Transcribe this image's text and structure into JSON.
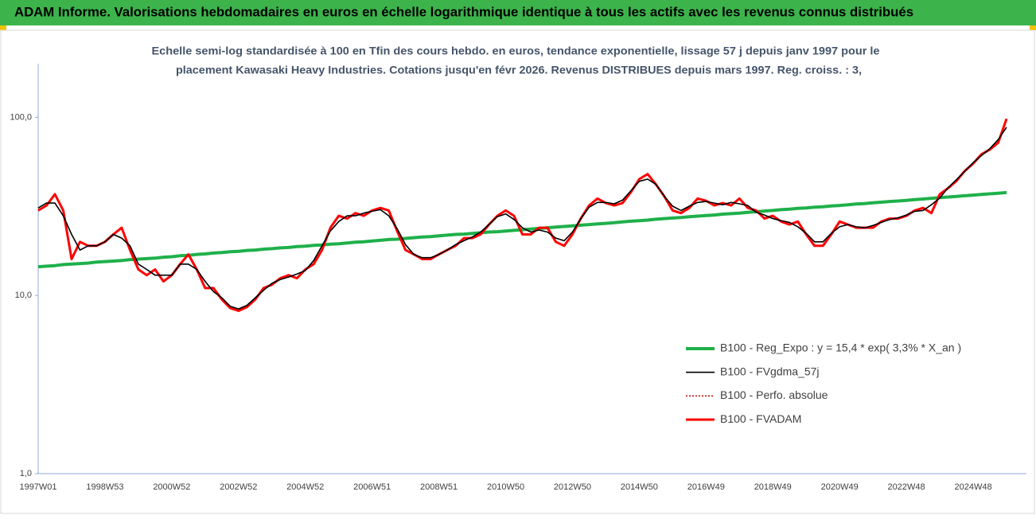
{
  "chart_data": {
    "type": "line",
    "title": "ADAM Informe. Valorisations hebdomadaires en euros en échelle logarithmique identique à tous les actifs avec les revenus connus distribués",
    "subtitle": [
      "Echelle semi-log standardisée à 100 en Tfin des cours hebdo. en euros, tendance exponentielle, lissage 57 j depuis janv 1997 pour le",
      "placement Kawasaki Heavy Industries. Cotations jusqu'en févr 2026. Revenus DISTRIBUES depuis mars 1997. Reg. croiss. : 3,"
    ],
    "log_scale": true,
    "ylim": [
      1,
      200
    ],
    "yticks": [
      {
        "value": 1,
        "label": "1,0"
      },
      {
        "value": 10,
        "label": "10,0"
      },
      {
        "value": 100,
        "label": "100,0"
      }
    ],
    "legend": "lower right",
    "categories": [
      "1997W01",
      null,
      null,
      null,
      null,
      null,
      null,
      null,
      "1998W53",
      null,
      null,
      null,
      null,
      null,
      null,
      null,
      "2000W52",
      null,
      null,
      null,
      null,
      null,
      null,
      null,
      "2002W52",
      null,
      null,
      null,
      null,
      null,
      null,
      null,
      "2004W52",
      null,
      null,
      null,
      null,
      null,
      null,
      null,
      "2006W51",
      null,
      null,
      null,
      null,
      null,
      null,
      null,
      "2008W51",
      null,
      null,
      null,
      null,
      null,
      null,
      null,
      "2010W50",
      null,
      null,
      null,
      null,
      null,
      null,
      null,
      "2012W50",
      null,
      null,
      null,
      null,
      null,
      null,
      null,
      "2014W50",
      null,
      null,
      null,
      null,
      null,
      null,
      null,
      "2016W49",
      null,
      null,
      null,
      null,
      null,
      null,
      null,
      "2018W49",
      null,
      null,
      null,
      null,
      null,
      null,
      null,
      "2020W49",
      null,
      null,
      null,
      null,
      null,
      null,
      null,
      "2022W48",
      null,
      null,
      null,
      null,
      null,
      null,
      null,
      "2024W48",
      null,
      null,
      null,
      null
    ],
    "series": [
      {
        "name": "B100 - Reg_Expo : y = 15,4 * exp( 3,3% *  X_an )",
        "color": "#1fb04a",
        "width": 4,
        "style": "solid",
        "values": [
          14.5,
          14.6,
          14.7,
          14.9,
          15.0,
          15.1,
          15.2,
          15.4,
          15.5,
          15.6,
          15.7,
          15.9,
          16.0,
          16.1,
          16.2,
          16.4,
          16.5,
          16.7,
          16.8,
          17.0,
          17.1,
          17.3,
          17.4,
          17.6,
          17.7,
          17.9,
          18.0,
          18.2,
          18.3,
          18.5,
          18.6,
          18.8,
          18.9,
          19.1,
          19.2,
          19.4,
          19.5,
          19.7,
          19.9,
          20.0,
          20.2,
          20.4,
          20.6,
          20.7,
          20.9,
          21.1,
          21.3,
          21.4,
          21.6,
          21.8,
          22.0,
          22.1,
          22.3,
          22.5,
          22.7,
          22.8,
          23.0,
          23.2,
          23.4,
          23.6,
          23.8,
          24.0,
          24.2,
          24.4,
          24.6,
          24.8,
          25.0,
          25.2,
          25.4,
          25.6,
          25.9,
          26.1,
          26.3,
          26.5,
          26.8,
          27.0,
          27.2,
          27.4,
          27.7,
          27.9,
          28.1,
          28.3,
          28.6,
          28.8,
          29.0,
          29.3,
          29.5,
          29.8,
          30.0,
          30.3,
          30.5,
          30.8,
          31.0,
          31.3,
          31.5,
          31.8,
          32.0,
          32.3,
          32.6,
          32.8,
          33.1,
          33.4,
          33.7,
          33.9,
          34.2,
          34.5,
          34.8,
          35.1,
          35.4,
          35.7,
          36.0,
          36.3,
          36.6,
          36.9,
          37.2,
          37.5,
          37.8
        ]
      },
      {
        "name": "B100 - FVgdma_57j",
        "color": "#000000",
        "width": 1.6,
        "style": "solid",
        "values": [
          31,
          33,
          33,
          28,
          22,
          18,
          19,
          19,
          20,
          22,
          21,
          19,
          15,
          14,
          13,
          13,
          13,
          15,
          15,
          14,
          12,
          10.5,
          9.7,
          8.7,
          8.4,
          8.8,
          9.7,
          10.7,
          11.7,
          12.3,
          12.7,
          13.2,
          13.8,
          15.7,
          19,
          23,
          26,
          28,
          28,
          29,
          29.7,
          30.3,
          28,
          23.7,
          19.3,
          17,
          16.3,
          16.3,
          17,
          18,
          19.3,
          20.3,
          21.3,
          22.7,
          25,
          27.7,
          28.7,
          26.7,
          24,
          22.7,
          23.3,
          22.7,
          21,
          20.3,
          22.7,
          27,
          31.3,
          33.3,
          33.3,
          32.7,
          34.3,
          38.7,
          43.7,
          45,
          42,
          36,
          31.7,
          30,
          31.7,
          33.3,
          33.7,
          33,
          32.3,
          33.3,
          32.7,
          32,
          29.3,
          28.3,
          27,
          26.3,
          25.7,
          24.3,
          22.3,
          20,
          20,
          22.3,
          24.3,
          25,
          24.3,
          24,
          24.7,
          25.7,
          26.7,
          27.3,
          28.3,
          29.7,
          30,
          32.3,
          35.3,
          40.3,
          44.7,
          49.7,
          55.7,
          61,
          66.7,
          75,
          88
        ]
      },
      {
        "name": "B100 - Perfo. absolue",
        "color": "#c00000",
        "width": 1.5,
        "style": "dotted",
        "values": [
          30,
          32,
          37,
          30,
          16,
          20,
          19,
          19,
          20,
          22,
          24,
          18,
          14,
          13,
          14,
          12,
          13,
          15,
          17,
          14,
          11,
          11,
          9.5,
          8.5,
          8.2,
          8.6,
          9.5,
          11,
          11.5,
          12.5,
          13,
          12.5,
          14,
          15,
          18,
          24,
          28,
          27,
          29,
          28,
          30,
          31,
          30,
          23,
          18,
          17,
          16,
          16,
          17,
          18,
          19,
          21,
          21,
          22,
          25,
          28,
          30,
          28,
          22,
          22,
          24,
          24,
          20,
          19,
          22,
          27,
          32,
          35,
          33,
          32,
          33,
          38,
          45,
          48,
          42,
          36,
          30,
          29,
          31,
          35,
          34,
          32,
          33,
          32,
          35,
          31,
          30,
          27,
          28,
          26,
          25,
          26,
          22,
          19,
          19,
          22,
          26,
          25,
          24,
          24,
          24,
          26,
          27,
          27,
          28,
          30,
          31,
          29,
          37,
          40,
          44,
          50,
          55,
          62,
          66,
          72,
          98
        ]
      },
      {
        "name": "B100 - FVADAM",
        "color": "#ff0000",
        "width": 3,
        "style": "solid",
        "values": [
          30,
          32,
          37,
          30,
          16,
          20,
          19,
          19,
          20,
          22,
          24,
          18,
          14,
          13,
          14,
          12,
          13,
          15,
          17,
          14,
          11,
          11,
          9.5,
          8.5,
          8.2,
          8.6,
          9.5,
          11,
          11.5,
          12.5,
          13,
          12.5,
          14,
          15,
          18,
          24,
          28,
          27,
          29,
          28,
          30,
          31,
          30,
          23,
          18,
          17,
          16,
          16,
          17,
          18,
          19,
          21,
          21,
          22,
          25,
          28,
          30,
          28,
          22,
          22,
          24,
          24,
          20,
          19,
          22,
          27,
          32,
          35,
          33,
          32,
          33,
          38,
          45,
          48,
          42,
          36,
          30,
          29,
          31,
          35,
          34,
          32,
          33,
          32,
          35,
          31,
          30,
          27,
          28,
          26,
          25,
          26,
          22,
          19,
          19,
          22,
          26,
          25,
          24,
          24,
          24,
          26,
          27,
          27,
          28,
          30,
          31,
          29,
          37,
          40,
          44,
          50,
          55,
          62,
          66,
          72,
          98
        ]
      }
    ]
  }
}
